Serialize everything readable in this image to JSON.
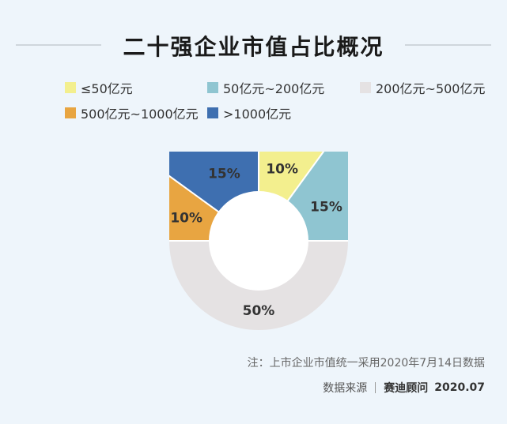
{
  "chart_data": {
    "type": "pie",
    "title": "二十强企业市值占比概况",
    "categories": [
      "≤50亿元",
      "50亿元~200亿元",
      "200亿元~500亿元",
      "500亿元~1000亿元",
      ">1000亿元"
    ],
    "values": [
      10,
      15,
      50,
      10,
      15
    ],
    "value_labels": [
      "10%",
      "15%",
      "50%",
      "10%",
      "15%"
    ],
    "colors": [
      "#f3ef8e",
      "#8fc5d1",
      "#e5e2e3",
      "#e8a541",
      "#3e6fb0"
    ],
    "legend_position": "top",
    "donut": true
  },
  "note": "注：上市企业市值统一采用2020年7月14日数据",
  "source": {
    "label": "数据来源",
    "brand": "赛迪顾问",
    "date": "2020.07"
  }
}
